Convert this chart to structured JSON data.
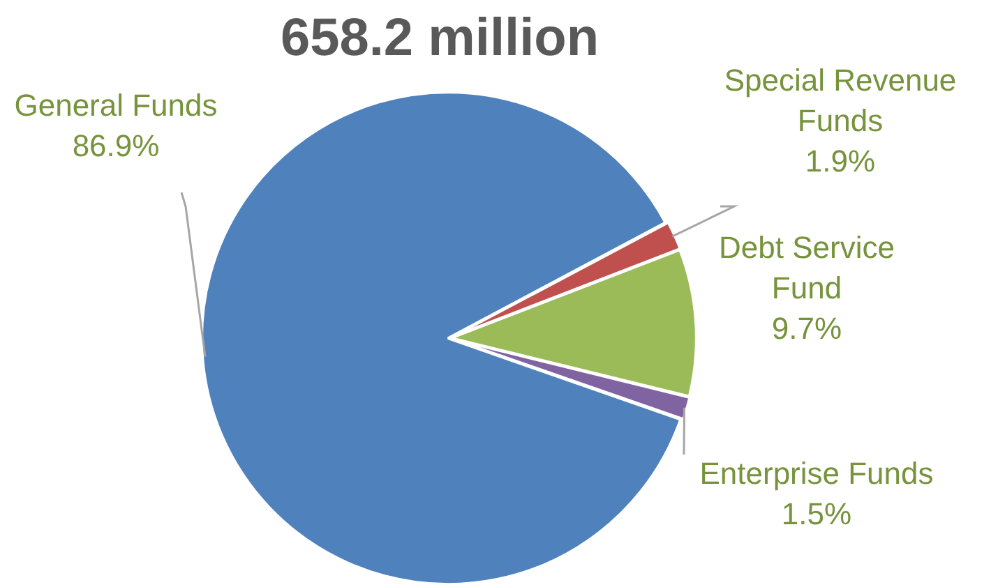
{
  "chart_data": {
    "type": "pie",
    "title": "658.2 million",
    "categories": [
      "General Funds",
      "Special Revenue Funds",
      "Debt Service Fund",
      "Enterprise Funds"
    ],
    "values": [
      86.9,
      1.9,
      9.7,
      1.5
    ],
    "colors": [
      "#4f81bd",
      "#c0504d",
      "#9bbb59",
      "#8064a2"
    ],
    "value_labels": [
      "86.9%",
      "1.9%",
      "9.7%",
      "1.5%"
    ],
    "legend": false
  }
}
